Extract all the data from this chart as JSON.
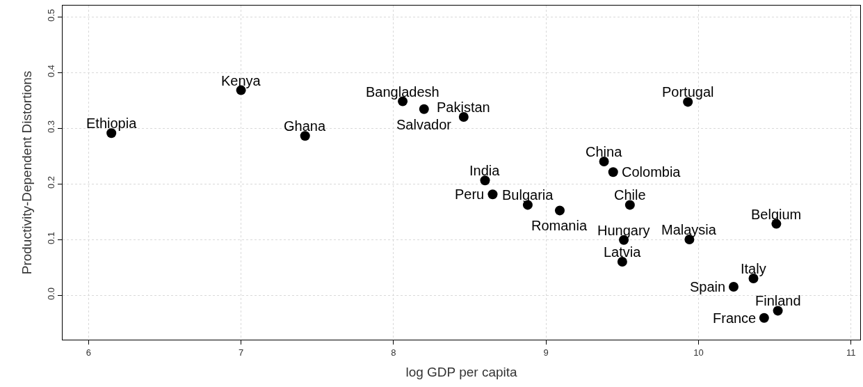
{
  "chart_data": {
    "type": "scatter",
    "xlabel": "log GDP per capita",
    "ylabel": "Productivity-Dependent Distortions",
    "x": [
      6.15,
      7.0,
      7.42,
      8.06,
      8.2,
      8.46,
      8.6,
      8.65,
      8.88,
      9.09,
      9.38,
      9.44,
      9.55,
      9.51,
      9.5,
      9.93,
      9.94,
      10.51,
      10.36,
      10.23,
      10.52,
      10.43
    ],
    "values": [
      0.291,
      0.368,
      0.286,
      0.348,
      0.334,
      0.32,
      0.206,
      0.181,
      0.162,
      0.152,
      0.24,
      0.221,
      0.162,
      0.099,
      0.06,
      0.347,
      0.1,
      0.128,
      0.03,
      0.015,
      -0.028,
      -0.041
    ],
    "color": "#000000",
    "marker": "circle",
    "annotations": [
      {
        "text": "Ethiopia",
        "x": 6.15,
        "y": 0.291
      },
      {
        "text": "Kenya",
        "x": 7.0,
        "y": 0.368
      },
      {
        "text": "Ghana",
        "x": 7.42,
        "y": 0.286
      },
      {
        "text": "Bangladesh",
        "x": 8.06,
        "y": 0.348
      },
      {
        "text": "Salvador",
        "x": 8.2,
        "y": 0.334
      },
      {
        "text": "Pakistan",
        "x": 8.46,
        "y": 0.32
      },
      {
        "text": "India",
        "x": 8.6,
        "y": 0.206
      },
      {
        "text": "Peru",
        "x": 8.65,
        "y": 0.181
      },
      {
        "text": "Bulgaria",
        "x": 8.88,
        "y": 0.162
      },
      {
        "text": "Romania",
        "x": 9.09,
        "y": 0.152
      },
      {
        "text": "China",
        "x": 9.38,
        "y": 0.24
      },
      {
        "text": "Colombia",
        "x": 9.44,
        "y": 0.221
      },
      {
        "text": "Chile",
        "x": 9.55,
        "y": 0.162
      },
      {
        "text": "Hungary",
        "x": 9.51,
        "y": 0.099
      },
      {
        "text": "Latvia",
        "x": 9.5,
        "y": 0.06
      },
      {
        "text": "Portugal",
        "x": 9.93,
        "y": 0.347
      },
      {
        "text": "Malaysia",
        "x": 9.94,
        "y": 0.1
      },
      {
        "text": "Belgium",
        "x": 10.51,
        "y": 0.128
      },
      {
        "text": "Italy",
        "x": 10.36,
        "y": 0.03
      },
      {
        "text": "Spain",
        "x": 10.23,
        "y": 0.015
      },
      {
        "text": "Finland",
        "x": 10.52,
        "y": -0.028
      },
      {
        "text": "France",
        "x": 10.43,
        "y": -0.041
      }
    ],
    "xlim": [
      5.83,
      11.06
    ],
    "xticks": [
      6,
      7,
      8,
      9,
      10,
      11
    ],
    "ylim": [
      -0.08,
      0.52
    ],
    "yticks": [
      {
        "value": 0,
        "label": "0.0"
      },
      0.1,
      0.2,
      0.3,
      0.4,
      0.5
    ],
    "grid": true
  }
}
